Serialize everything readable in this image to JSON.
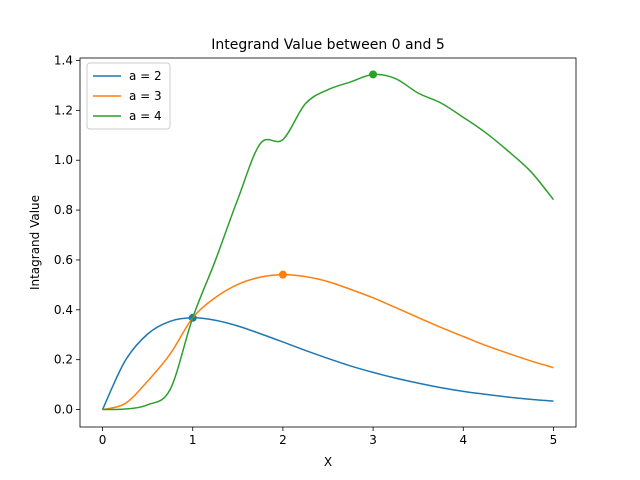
{
  "chart_data": {
    "type": "line",
    "title": "Integrand Value between 0 and 5",
    "xlabel": "X",
    "ylabel": "Intagrand Value",
    "xlim": [
      -0.25,
      5.25
    ],
    "ylim": [
      -0.07,
      1.41
    ],
    "xticks": [
      0,
      1,
      2,
      3,
      4,
      5
    ],
    "yticks": [
      0.0,
      0.2,
      0.4,
      0.6,
      0.8,
      1.0,
      1.2,
      1.4
    ],
    "xtick_labels": [
      "0",
      "1",
      "2",
      "3",
      "4",
      "5"
    ],
    "ytick_labels": [
      "0.0",
      "0.2",
      "0.4",
      "0.6",
      "0.8",
      "1.0",
      "1.2",
      "1.4"
    ],
    "grid": false,
    "legend_position": "top-left",
    "x": [
      0,
      0.25,
      0.5,
      0.75,
      1,
      1.25,
      1.5,
      1.75,
      2,
      2.25,
      2.5,
      2.75,
      3,
      3.25,
      3.5,
      3.75,
      4,
      4.25,
      4.5,
      4.75,
      5
    ],
    "series": [
      {
        "name": "a = 2",
        "color": "#1f77b4",
        "values": [
          0,
          0.195,
          0.303,
          0.354,
          0.368,
          0.358,
          0.335,
          0.304,
          0.271,
          0.237,
          0.205,
          0.175,
          0.149,
          0.126,
          0.106,
          0.088,
          0.073,
          0.061,
          0.05,
          0.041,
          0.034
        ],
        "peak": {
          "x": 1,
          "y": 0.368
        }
      },
      {
        "name": "a = 3",
        "color": "#ff7f0e",
        "values": [
          0,
          0.024,
          0.114,
          0.223,
          0.368,
          0.449,
          0.502,
          0.531,
          0.541,
          0.533,
          0.513,
          0.482,
          0.448,
          0.409,
          0.369,
          0.33,
          0.293,
          0.257,
          0.225,
          0.195,
          0.168
        ],
        "peak": {
          "x": 2,
          "y": 0.541
        }
      },
      {
        "name": "a = 4",
        "color": "#2ca02c",
        "values": [
          0,
          0.002,
          0.019,
          0.081,
          0.368,
          0.597,
          0.844,
          1.067,
          1.083,
          1.227,
          1.283,
          1.314,
          1.344,
          1.327,
          1.269,
          1.23,
          1.172,
          1.11,
          1.036,
          0.954,
          0.842
        ],
        "peak": {
          "x": 3,
          "y": 1.344
        }
      }
    ]
  }
}
